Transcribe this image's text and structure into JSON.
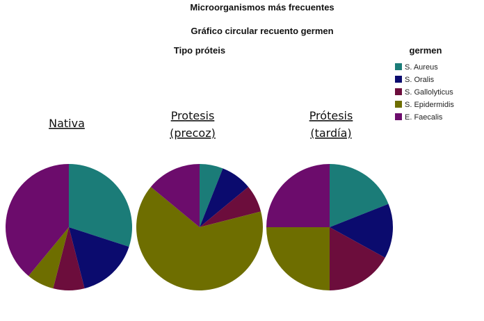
{
  "title": "Microorganismos más frecuentes",
  "subtitle": "Gráfico circular recuento germen",
  "facet_label": "Tipo próteis",
  "legend_title": "germen",
  "chart_data": [
    {
      "type": "pie",
      "title": [
        "Nativa"
      ],
      "categories": [
        "S. Aureus",
        "S. Oralis",
        "S. Gallolyticus",
        "S. Epidermidis",
        "E. Faecalis"
      ],
      "values": [
        30,
        16,
        8,
        7,
        39
      ],
      "colors": [
        "#1b7c78",
        "#0b0b6e",
        "#6c0d3c",
        "#6e6e00",
        "#6c0c6c"
      ]
    },
    {
      "type": "pie",
      "title": [
        "Protesis",
        "(precoz)"
      ],
      "categories": [
        "S. Aureus",
        "S. Oralis",
        "S. Gallolyticus",
        "S. Epidermidis",
        "E. Faecalis"
      ],
      "values": [
        6,
        8,
        7,
        65,
        14
      ],
      "colors": [
        "#1b7c78",
        "#0b0b6e",
        "#6c0d3c",
        "#6e6e00",
        "#6c0c6c"
      ]
    },
    {
      "type": "pie",
      "title": [
        "Prótesis",
        "(tardía)"
      ],
      "categories": [
        "S. Aureus",
        "S. Oralis",
        "S. Gallolyticus",
        "S. Epidermidis",
        "E. Faecalis"
      ],
      "values": [
        19,
        14,
        17,
        25,
        25
      ],
      "colors": [
        "#1b7c78",
        "#0b0b6e",
        "#6c0d3c",
        "#6e6e00",
        "#6c0c6c"
      ]
    }
  ]
}
